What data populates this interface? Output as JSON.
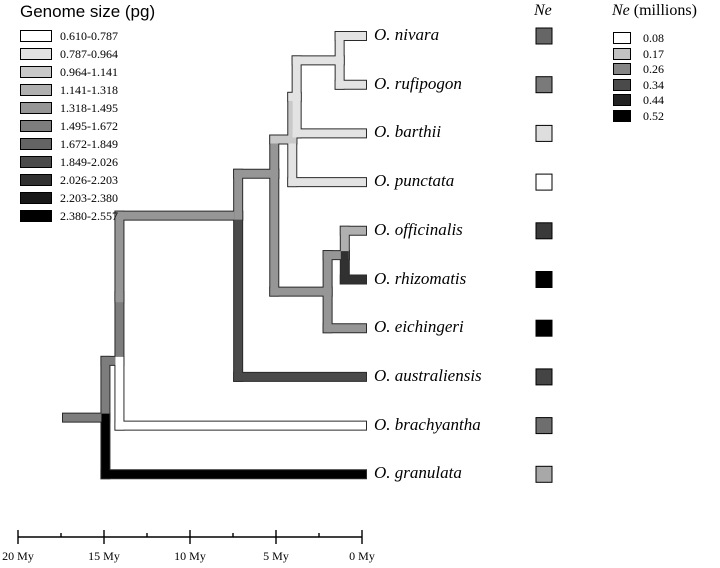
{
  "genome_legend": {
    "title": "Genome size (pg)",
    "items": [
      {
        "label": "0.610-0.787",
        "color": "#ffffff"
      },
      {
        "label": "0.787-0.964",
        "color": "#e3e3e3"
      },
      {
        "label": "0.964-1.141",
        "color": "#c9c9c9"
      },
      {
        "label": "1.141-1.318",
        "color": "#b0b0b0"
      },
      {
        "label": "1.318-1.495",
        "color": "#969696"
      },
      {
        "label": "1.495-1.672",
        "color": "#7d7d7d"
      },
      {
        "label": "1.672-1.849",
        "color": "#646464"
      },
      {
        "label": "1.849-2.026",
        "color": "#4a4a4a"
      },
      {
        "label": "2.026-2.203",
        "color": "#313131"
      },
      {
        "label": "2.203-2.380",
        "color": "#181818"
      },
      {
        "label": "2.380-2.557",
        "color": "#000000"
      }
    ]
  },
  "ne_legend": {
    "title_italic": "Ne",
    "title_rest": " (millions)",
    "items": [
      {
        "label": "0.08",
        "color": "#ffffff"
      },
      {
        "label": "0.17",
        "color": "#c2c2c2"
      },
      {
        "label": "0.26",
        "color": "#858585"
      },
      {
        "label": "0.34",
        "color": "#4a4a4a"
      },
      {
        "label": "0.44",
        "color": "#222222"
      },
      {
        "label": "0.52",
        "color": "#000000"
      }
    ]
  },
  "ne_column_title": "Ne",
  "taxa": [
    {
      "name": "O. nivara",
      "ne_color": "#666666"
    },
    {
      "name": "O. rufipogon",
      "ne_color": "#7a7a7a"
    },
    {
      "name": "O. barthii",
      "ne_color": "#dedede"
    },
    {
      "name": "O. punctata",
      "ne_color": "#ffffff"
    },
    {
      "name": "O. officinalis",
      "ne_color": "#3a3a3a"
    },
    {
      "name": "O. rhizomatis",
      "ne_color": "#000000"
    },
    {
      "name": "O. eichingeri",
      "ne_color": "#000000"
    },
    {
      "name": "O. australiensis",
      "ne_color": "#444444"
    },
    {
      "name": "O. brachyantha",
      "ne_color": "#6e6e6e"
    },
    {
      "name": "O. granulata",
      "ne_color": "#a8a8a8"
    }
  ],
  "time_axis": {
    "ticks": [
      {
        "label": "20 My",
        "value": 20
      },
      {
        "label": "15 My",
        "value": 15
      },
      {
        "label": "10 My",
        "value": 10
      },
      {
        "label": "5 My",
        "value": 5
      },
      {
        "label": "0 My",
        "value": 0
      }
    ],
    "minor_ticks": [
      17.5,
      12.5,
      7.5,
      2.5
    ]
  },
  "tree_colors": {
    "root_stem": "#7d7d7d",
    "ingroup_stem": "#7d7d7d",
    "granulata": "#000000",
    "brachyantha": "#ffffff",
    "core_clade": "#969696",
    "australiensis": "#4a4a4a",
    "aa_cc_clade": "#969696",
    "aa_clade": "#c9c9c9",
    "punctata": "#e3e3e3",
    "aa_inner": "#e3e3e3",
    "barthii": "#e3e3e3",
    "nivara_rufipogon": "#e3e3e3",
    "cc_clade": "#969696",
    "eichingeri": "#969696",
    "officinalis_rhizomatis": "#969696",
    "officinalis": "#b0b0b0",
    "rhizomatis": "#313131"
  }
}
